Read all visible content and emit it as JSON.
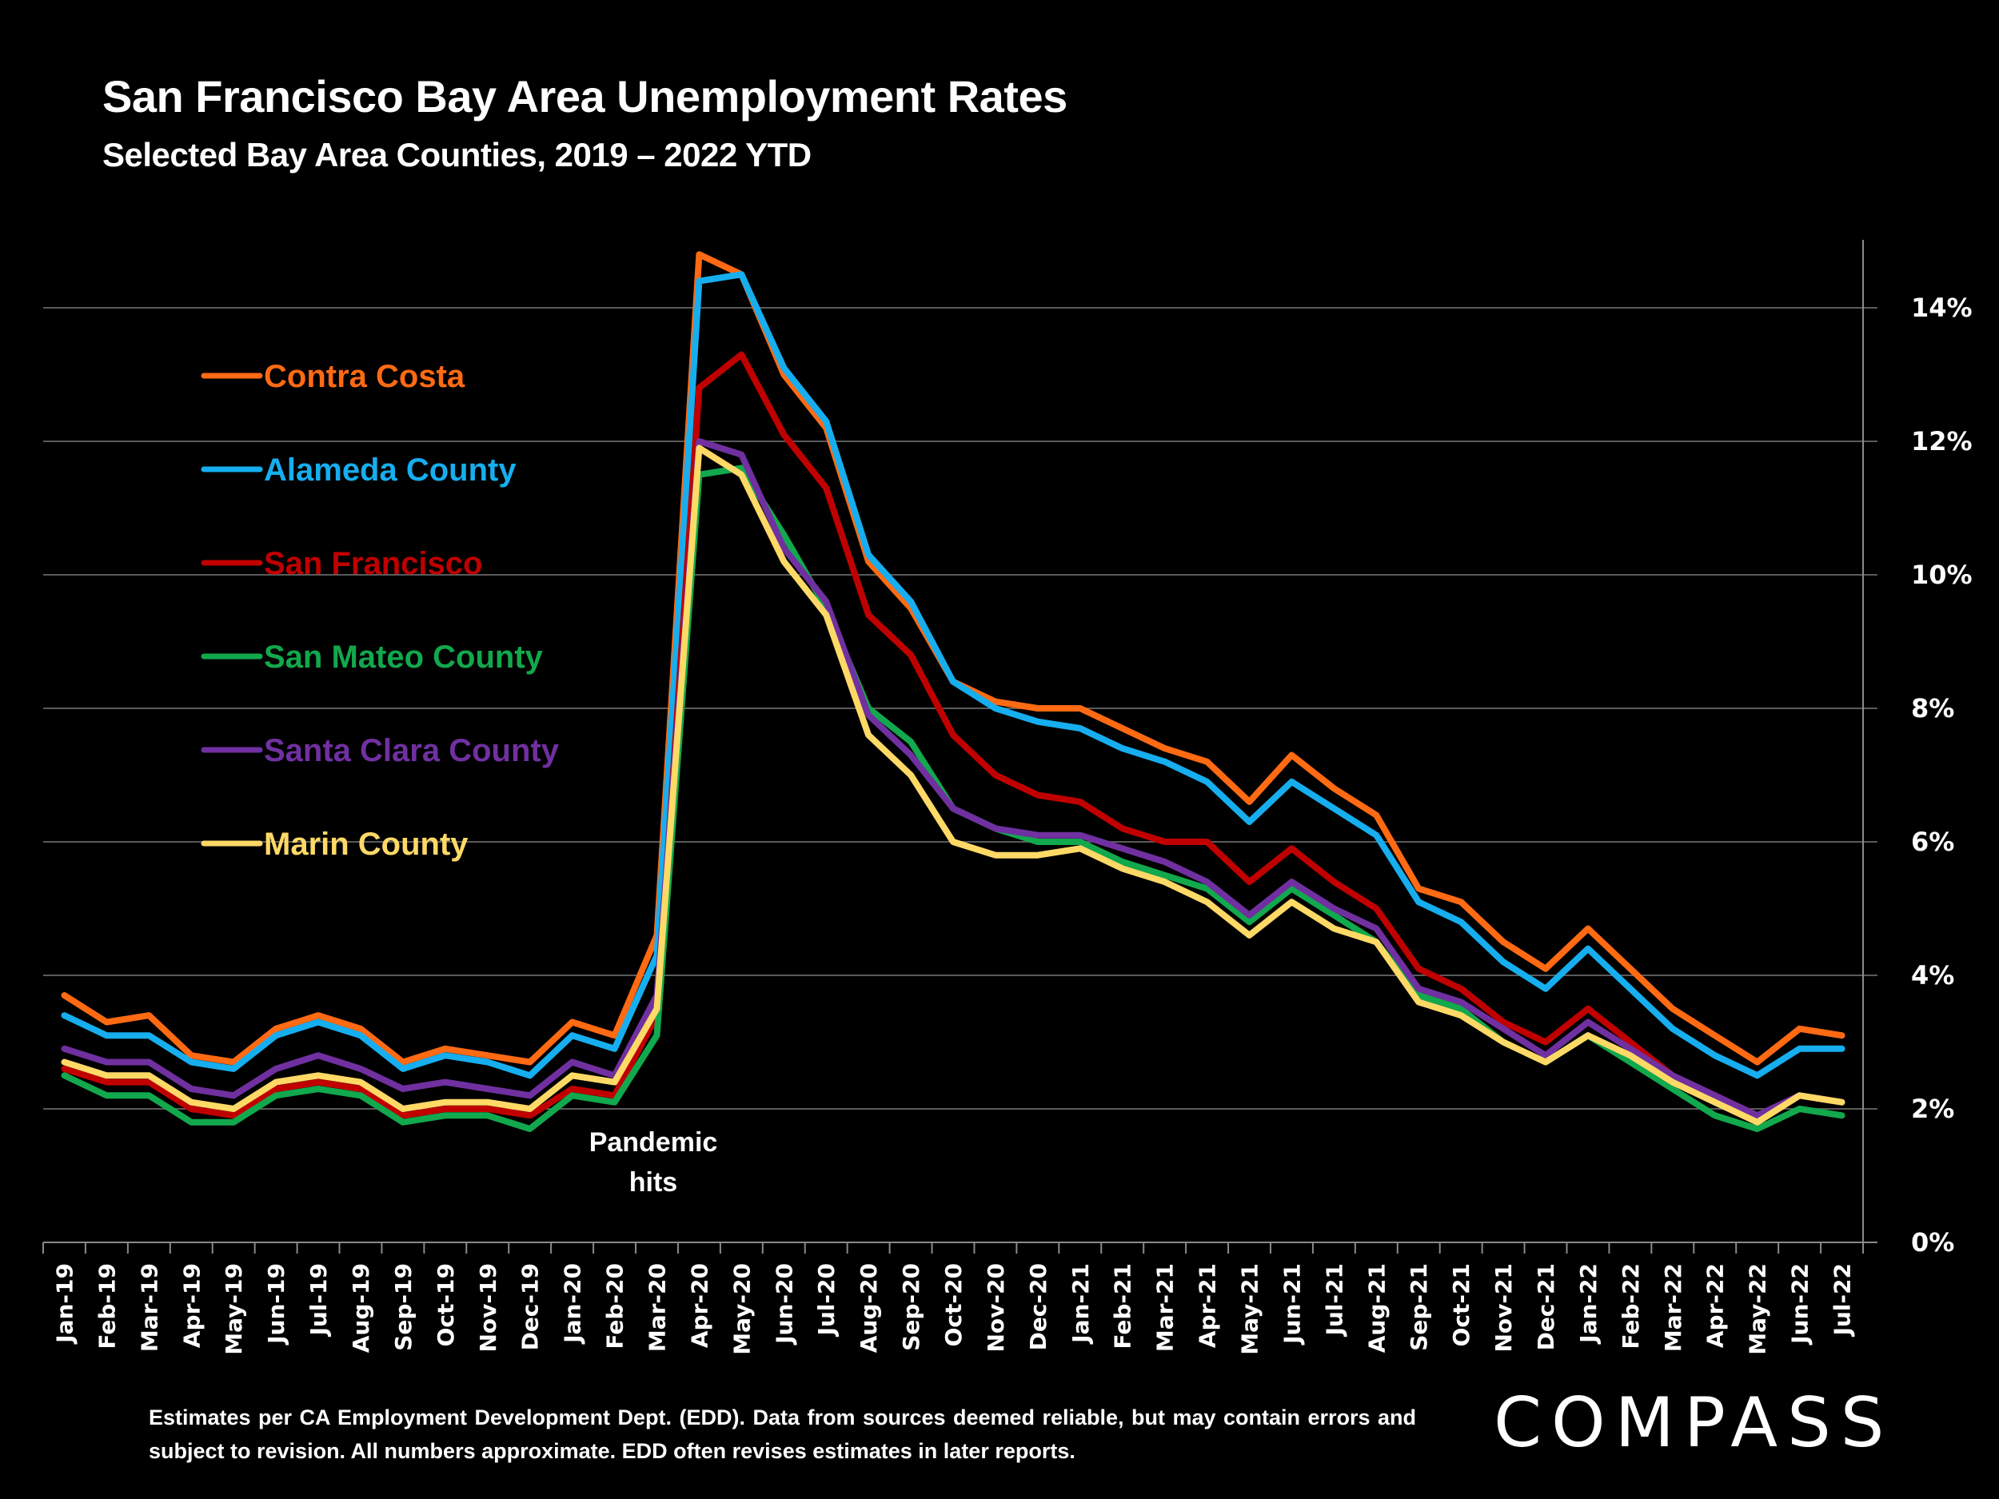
{
  "chart_data": {
    "type": "line",
    "title": "San Francisco Bay Area Unemployment Rates",
    "subtitle": "Selected Bay Area Counties, 2019 – 2022 YTD",
    "xlabel": "",
    "ylabel": "",
    "ylim": [
      0,
      15
    ],
    "yticks": [
      0,
      2,
      4,
      6,
      8,
      10,
      12,
      14
    ],
    "ytick_labels": [
      "0%",
      "2%",
      "4%",
      "6%",
      "8%",
      "10%",
      "12%",
      "14%"
    ],
    "grid": true,
    "legend_position": "top-left",
    "categories": [
      "Jan-19",
      "Feb-19",
      "Mar-19",
      "Apr-19",
      "May-19",
      "Jun-19",
      "Jul-19",
      "Aug-19",
      "Sep-19",
      "Oct-19",
      "Nov-19",
      "Dec-19",
      "Jan-20",
      "Feb-20",
      "Mar-20",
      "Apr-20",
      "May-20",
      "Jun-20",
      "Jul-20",
      "Aug-20",
      "Sep-20",
      "Oct-20",
      "Nov-20",
      "Dec-20",
      "Jan-21",
      "Feb-21",
      "Mar-21",
      "Apr-21",
      "May-21",
      "Jun-21",
      "Jul-21",
      "Aug-21",
      "Sep-21",
      "Oct-21",
      "Nov-21",
      "Dec-21",
      "Jan-22",
      "Feb-22",
      "Mar-22",
      "Apr-22",
      "May-22",
      "Jun-22",
      "Jul-22"
    ],
    "series": [
      {
        "name": "Contra Costa",
        "color": "#FF6A13",
        "values": [
          3.7,
          3.3,
          3.4,
          2.8,
          2.7,
          3.2,
          3.4,
          3.2,
          2.7,
          2.9,
          2.8,
          2.7,
          3.3,
          3.1,
          4.6,
          14.8,
          14.5,
          13.0,
          12.2,
          10.2,
          9.5,
          8.4,
          8.1,
          8.0,
          8.0,
          7.7,
          7.4,
          7.2,
          6.6,
          7.3,
          6.8,
          6.4,
          5.3,
          5.1,
          4.5,
          4.1,
          4.7,
          4.1,
          3.5,
          3.1,
          2.7,
          3.2,
          3.1
        ]
      },
      {
        "name": "Alameda County",
        "color": "#16AEEF",
        "values": [
          3.4,
          3.1,
          3.1,
          2.7,
          2.6,
          3.1,
          3.3,
          3.1,
          2.6,
          2.8,
          2.7,
          2.5,
          3.1,
          2.9,
          4.3,
          14.4,
          14.5,
          13.1,
          12.3,
          10.3,
          9.6,
          8.4,
          8.0,
          7.8,
          7.7,
          7.4,
          7.2,
          6.9,
          6.3,
          6.9,
          6.5,
          6.1,
          5.1,
          4.8,
          4.2,
          3.8,
          4.4,
          3.8,
          3.2,
          2.8,
          2.5,
          2.9,
          2.9
        ]
      },
      {
        "name": "San Francisco",
        "color": "#C00000",
        "values": [
          2.6,
          2.4,
          2.4,
          2.0,
          1.9,
          2.3,
          2.4,
          2.3,
          1.9,
          2.0,
          2.0,
          1.9,
          2.3,
          2.2,
          3.4,
          12.8,
          13.3,
          12.1,
          11.3,
          9.4,
          8.8,
          7.6,
          7.0,
          6.7,
          6.6,
          6.2,
          6.0,
          6.0,
          5.4,
          5.9,
          5.4,
          5.0,
          4.1,
          3.8,
          3.3,
          3.0,
          3.5,
          3.0,
          2.5,
          2.2,
          1.9,
          2.2,
          2.1
        ]
      },
      {
        "name": "San Mateo County",
        "color": "#12A84D",
        "values": [
          2.5,
          2.2,
          2.2,
          1.8,
          1.8,
          2.2,
          2.3,
          2.2,
          1.8,
          1.9,
          1.9,
          1.7,
          2.2,
          2.1,
          3.1,
          11.5,
          11.6,
          10.6,
          9.5,
          8.0,
          7.5,
          6.5,
          6.2,
          6.0,
          6.0,
          5.7,
          5.5,
          5.3,
          4.8,
          5.3,
          4.9,
          4.5,
          3.7,
          3.5,
          3.0,
          2.7,
          3.1,
          2.7,
          2.3,
          1.9,
          1.7,
          2.0,
          1.9
        ]
      },
      {
        "name": "Santa Clara County",
        "color": "#7030A0",
        "values": [
          2.9,
          2.7,
          2.7,
          2.3,
          2.2,
          2.6,
          2.8,
          2.6,
          2.3,
          2.4,
          2.3,
          2.2,
          2.7,
          2.5,
          3.7,
          12.0,
          11.8,
          10.4,
          9.6,
          7.9,
          7.3,
          6.5,
          6.2,
          6.1,
          6.1,
          5.9,
          5.7,
          5.4,
          4.9,
          5.4,
          5.0,
          4.7,
          3.8,
          3.6,
          3.2,
          2.8,
          3.3,
          2.9,
          2.5,
          2.2,
          1.9,
          2.2,
          2.1
        ]
      },
      {
        "name": "Marin County",
        "color": "#FFD966",
        "values": [
          2.7,
          2.5,
          2.5,
          2.1,
          2.0,
          2.4,
          2.5,
          2.4,
          2.0,
          2.1,
          2.1,
          2.0,
          2.5,
          2.4,
          3.5,
          11.9,
          11.5,
          10.2,
          9.4,
          7.6,
          7.0,
          6.0,
          5.8,
          5.8,
          5.9,
          5.6,
          5.4,
          5.1,
          4.6,
          5.1,
          4.7,
          4.5,
          3.6,
          3.4,
          3.0,
          2.7,
          3.1,
          2.8,
          2.4,
          2.1,
          1.8,
          2.2,
          2.1
        ]
      }
    ],
    "annotations": [
      {
        "text_lines": [
          "Pandemic",
          "hits"
        ],
        "category": "Mar-20"
      }
    ]
  },
  "footer": {
    "disclaimer": "Estimates per CA Employment Development Dept. (EDD). Data from sources deemed reliable, but may contain errors and subject to revision. All numbers approximate.  EDD often revises estimates in later reports."
  },
  "brand": {
    "logo_text": "COMPASS"
  }
}
